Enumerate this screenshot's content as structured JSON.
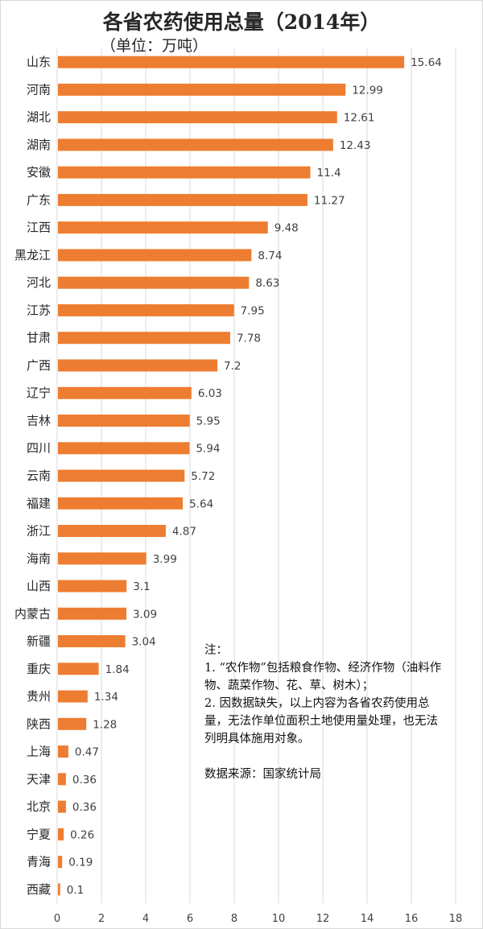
{
  "title": "各省农药使用总量（2014年）",
  "unit": "（单位：万吨）",
  "notes": {
    "heading": "注：",
    "line1": "1. “农作物”包括粮食作物、经济作物（油料作物、蔬菜作物、花、草、树木）；",
    "line2": "2. 因数据缺失，以上内容为各省农药使用总量，无法作单位面积土地使用量处理，也无法列明具体施用对象。",
    "source": "数据来源：国家统计局"
  },
  "colors": {
    "bar": "#ED7D31",
    "grid": "#d9d9d9",
    "label": "#404040"
  },
  "chart_data": {
    "type": "bar",
    "orientation": "horizontal",
    "title": "各省农药使用总量（2014年）",
    "ylabel": "",
    "xlabel": "",
    "unit": "万吨",
    "categories": [
      "山东",
      "河南",
      "湖北",
      "湖南",
      "安徽",
      "广东",
      "江西",
      "黑龙江",
      "河北",
      "江苏",
      "甘肃",
      "广西",
      "辽宁",
      "吉林",
      "四川",
      "云南",
      "福建",
      "浙江",
      "海南",
      "山西",
      "内蒙古",
      "新疆",
      "重庆",
      "贵州",
      "陕西",
      "上海",
      "天津",
      "北京",
      "宁夏",
      "青海",
      "西藏"
    ],
    "values": [
      15.64,
      12.99,
      12.61,
      12.43,
      11.4,
      11.27,
      9.48,
      8.74,
      8.63,
      7.95,
      7.78,
      7.2,
      6.03,
      5.95,
      5.94,
      5.72,
      5.64,
      4.87,
      3.99,
      3.1,
      3.09,
      3.04,
      1.84,
      1.34,
      1.28,
      0.47,
      0.36,
      0.36,
      0.26,
      0.19,
      0.1
    ],
    "value_labels": [
      "15.64",
      "12.99",
      "12.61",
      "12.43",
      "11.4",
      "11.27",
      "9.48",
      "8.74",
      "8.63",
      "7.95",
      "7.78",
      "7.2",
      "6.03",
      "5.95",
      "5.94",
      "5.72",
      "5.64",
      "4.87",
      "3.99",
      "3.1",
      "3.09",
      "3.04",
      "1.84",
      "1.34",
      "1.28",
      "0.47",
      "0.36",
      "0.36",
      "0.26",
      "0.19",
      "0.1"
    ],
    "xlim": [
      0,
      18
    ],
    "xticks": [
      "0",
      "2",
      "4",
      "6",
      "8",
      "10",
      "12",
      "14",
      "16",
      "18"
    ],
    "grid": true,
    "data_labels": true
  }
}
